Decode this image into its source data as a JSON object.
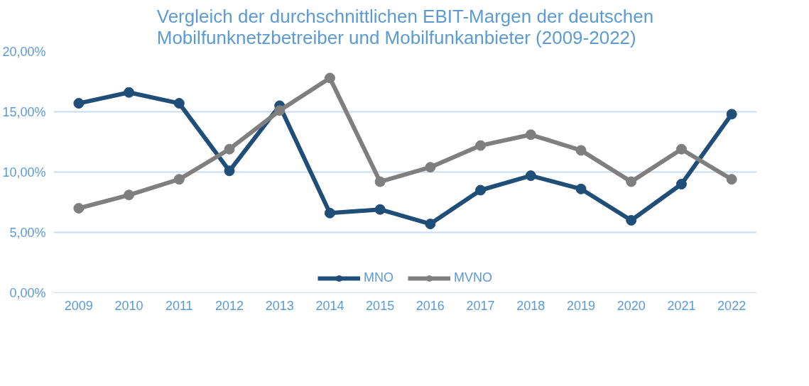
{
  "chart_data": {
    "type": "line",
    "title": "Vergleich der durchschnittlichen EBIT-Margen der deutschen\nMobilfunknetzbetreiber und Mobilfunkanbieter (2009-2022)",
    "categories": [
      "2009",
      "2010",
      "2011",
      "2012",
      "2013",
      "2014",
      "2015",
      "2016",
      "2017",
      "2018",
      "2019",
      "2020",
      "2021",
      "2022"
    ],
    "series": [
      {
        "name": "MNO",
        "color": "#1f4e79",
        "values": [
          15.7,
          16.6,
          15.7,
          10.1,
          15.5,
          6.6,
          6.9,
          5.7,
          8.5,
          9.7,
          8.6,
          6.0,
          9.0,
          14.8
        ]
      },
      {
        "name": "MVNO",
        "color": "#7f7f7f",
        "values": [
          7.0,
          8.1,
          9.4,
          11.9,
          15.1,
          17.8,
          9.2,
          10.4,
          12.2,
          13.1,
          11.8,
          9.2,
          11.9,
          9.4
        ]
      }
    ],
    "ylim": [
      0,
      20
    ],
    "yticks": [
      {
        "value": 0,
        "label": "0,00%"
      },
      {
        "value": 5,
        "label": "5,00%"
      },
      {
        "value": 10,
        "label": "10,00%"
      },
      {
        "value": 15,
        "label": "15,00%"
      },
      {
        "value": 20,
        "label": "20,00%"
      }
    ],
    "grid": "y",
    "legend": "bottom",
    "marker": "circle",
    "line_style": "solid"
  }
}
